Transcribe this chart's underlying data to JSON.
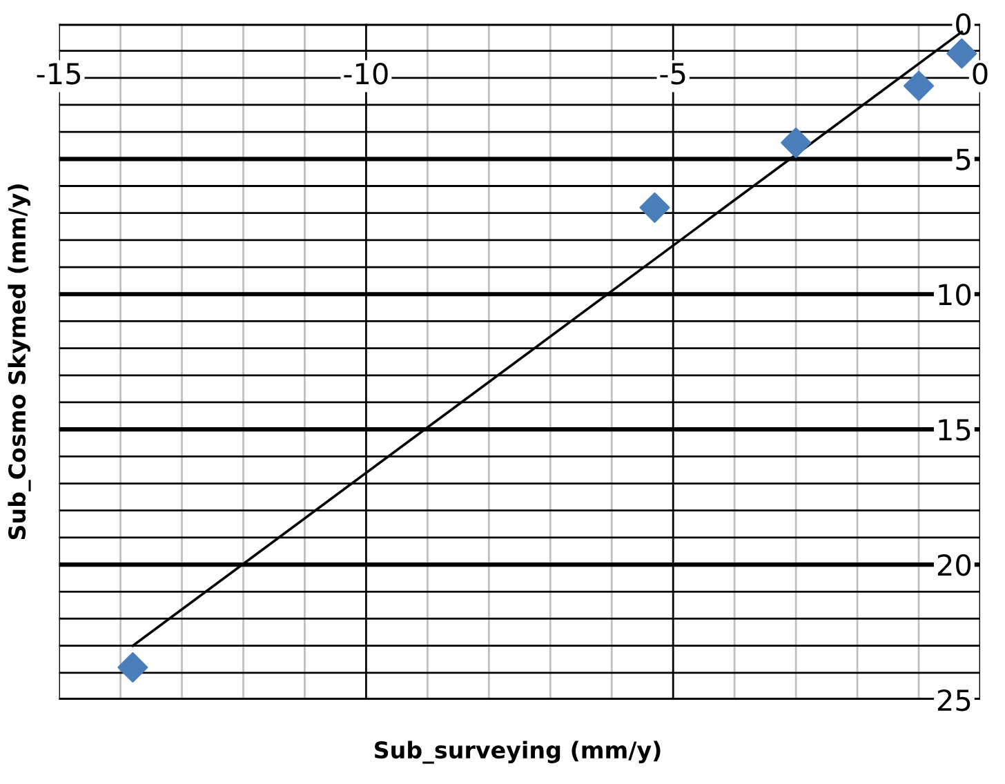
{
  "chart_data": {
    "type": "scatter",
    "xlabel": "Sub_surveying (mm/y)",
    "ylabel": "Sub_Cosmo Skymed (mm/y)",
    "marker": "diamond",
    "grid": true,
    "legend": false,
    "xlim": [
      -15,
      0
    ],
    "ylim": [
      25,
      0
    ],
    "xticks": [
      -15,
      {
        "value": -14,
        "label": null
      },
      {
        "value": -13,
        "label": null
      },
      {
        "value": -12,
        "label": null
      },
      {
        "value": -11,
        "label": null
      },
      -10,
      {
        "value": -9,
        "label": null
      },
      {
        "value": -8,
        "label": null
      },
      {
        "value": -7,
        "label": null
      },
      {
        "value": -6,
        "label": null
      },
      -5,
      {
        "value": -4,
        "label": null
      },
      {
        "value": -3,
        "label": null
      },
      {
        "value": -2,
        "label": null
      },
      {
        "value": -1,
        "label": null
      },
      0
    ],
    "yticks": [
      0,
      {
        "value": 1,
        "label": null
      },
      {
        "value": 2,
        "label": null
      },
      {
        "value": 3,
        "label": null
      },
      {
        "value": 4,
        "label": null
      },
      5,
      {
        "value": 6,
        "label": null
      },
      {
        "value": 7,
        "label": null
      },
      {
        "value": 8,
        "label": null
      },
      {
        "value": 9,
        "label": null
      },
      10,
      {
        "value": 11,
        "label": null
      },
      {
        "value": 12,
        "label": null
      },
      {
        "value": 13,
        "label": null
      },
      {
        "value": 14,
        "label": null
      },
      15,
      {
        "value": 16,
        "label": null
      },
      {
        "value": 17,
        "label": null
      },
      {
        "value": 18,
        "label": null
      },
      {
        "value": 19,
        "label": null
      },
      20,
      {
        "value": 21,
        "label": null
      },
      {
        "value": 22,
        "label": null
      },
      {
        "value": 23,
        "label": null
      },
      {
        "value": 24,
        "label": null
      },
      25
    ],
    "series": [
      {
        "color": "#4a7ebb",
        "x": [
          -13.8,
          -5.3,
          -3.0,
          -1.0,
          -0.3
        ],
        "values": [
          23.8,
          6.8,
          4.4,
          2.3,
          1.1
        ]
      },
      {
        "type": "line",
        "color": "#000000",
        "marker": "none",
        "x": [
          -13.8,
          -0.3
        ],
        "values": [
          23.0,
          0.3
        ]
      }
    ]
  }
}
